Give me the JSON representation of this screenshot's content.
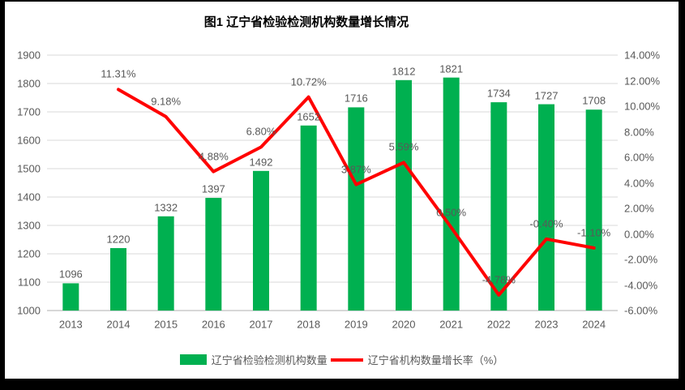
{
  "frame": {
    "border_color": "#000000",
    "background": "#FFFFFF"
  },
  "chart_data": {
    "type": "combo (bar + line)",
    "title": "图1 辽宁省检验检测机构数量增长情况",
    "categories": [
      "2013",
      "2014",
      "2015",
      "2016",
      "2017",
      "2018",
      "2019",
      "2020",
      "2021",
      "2022",
      "2023",
      "2024"
    ],
    "series": [
      {
        "name": "辽宁省检验检测机构数量",
        "kind": "bar",
        "axis": "left",
        "color": "#00B050",
        "values": [
          1096,
          1220,
          1332,
          1397,
          1492,
          1652,
          1716,
          1812,
          1821,
          1734,
          1727,
          1708
        ],
        "labels": [
          "1096",
          "1220",
          "1332",
          "1397",
          "1492",
          "1652",
          "1716",
          "1812",
          "1821",
          "1734",
          "1727",
          "1708"
        ]
      },
      {
        "name": "辽宁省机构数量增长率（%）",
        "kind": "line",
        "axis": "right",
        "color": "#FF0000",
        "values": [
          null,
          11.31,
          9.18,
          4.88,
          6.8,
          10.72,
          3.87,
          5.59,
          0.5,
          -4.78,
          -0.4,
          -1.1
        ],
        "labels": [
          "",
          "11.31%",
          "9.18%",
          "4.88%",
          "6.80%",
          "10.72%",
          "3.87%",
          "5.59%",
          "0.50%",
          "-4.78%",
          "-0.40%",
          "-1.10%"
        ]
      }
    ],
    "left_axis": {
      "min": 1000,
      "max": 1900,
      "step": 100,
      "tick_labels": [
        "1900",
        "1800",
        "1700",
        "1600",
        "1500",
        "1400",
        "1300",
        "1200",
        "1100",
        "1000"
      ]
    },
    "right_axis": {
      "min": -6,
      "max": 14,
      "step": 2,
      "tick_labels": [
        "14.00%",
        "12.00%",
        "10.00%",
        "8.00%",
        "6.00%",
        "4.00%",
        "2.00%",
        "0.00%",
        "-2.00%",
        "-4.00%",
        "-6.00%"
      ]
    },
    "grid": true,
    "legend_position": "bottom",
    "colors": {
      "gridline": "#D9D9D9",
      "axis_line": "#BFBFBF",
      "tick_label": "#595959",
      "data_label": "#595959",
      "title": "#000000"
    }
  }
}
